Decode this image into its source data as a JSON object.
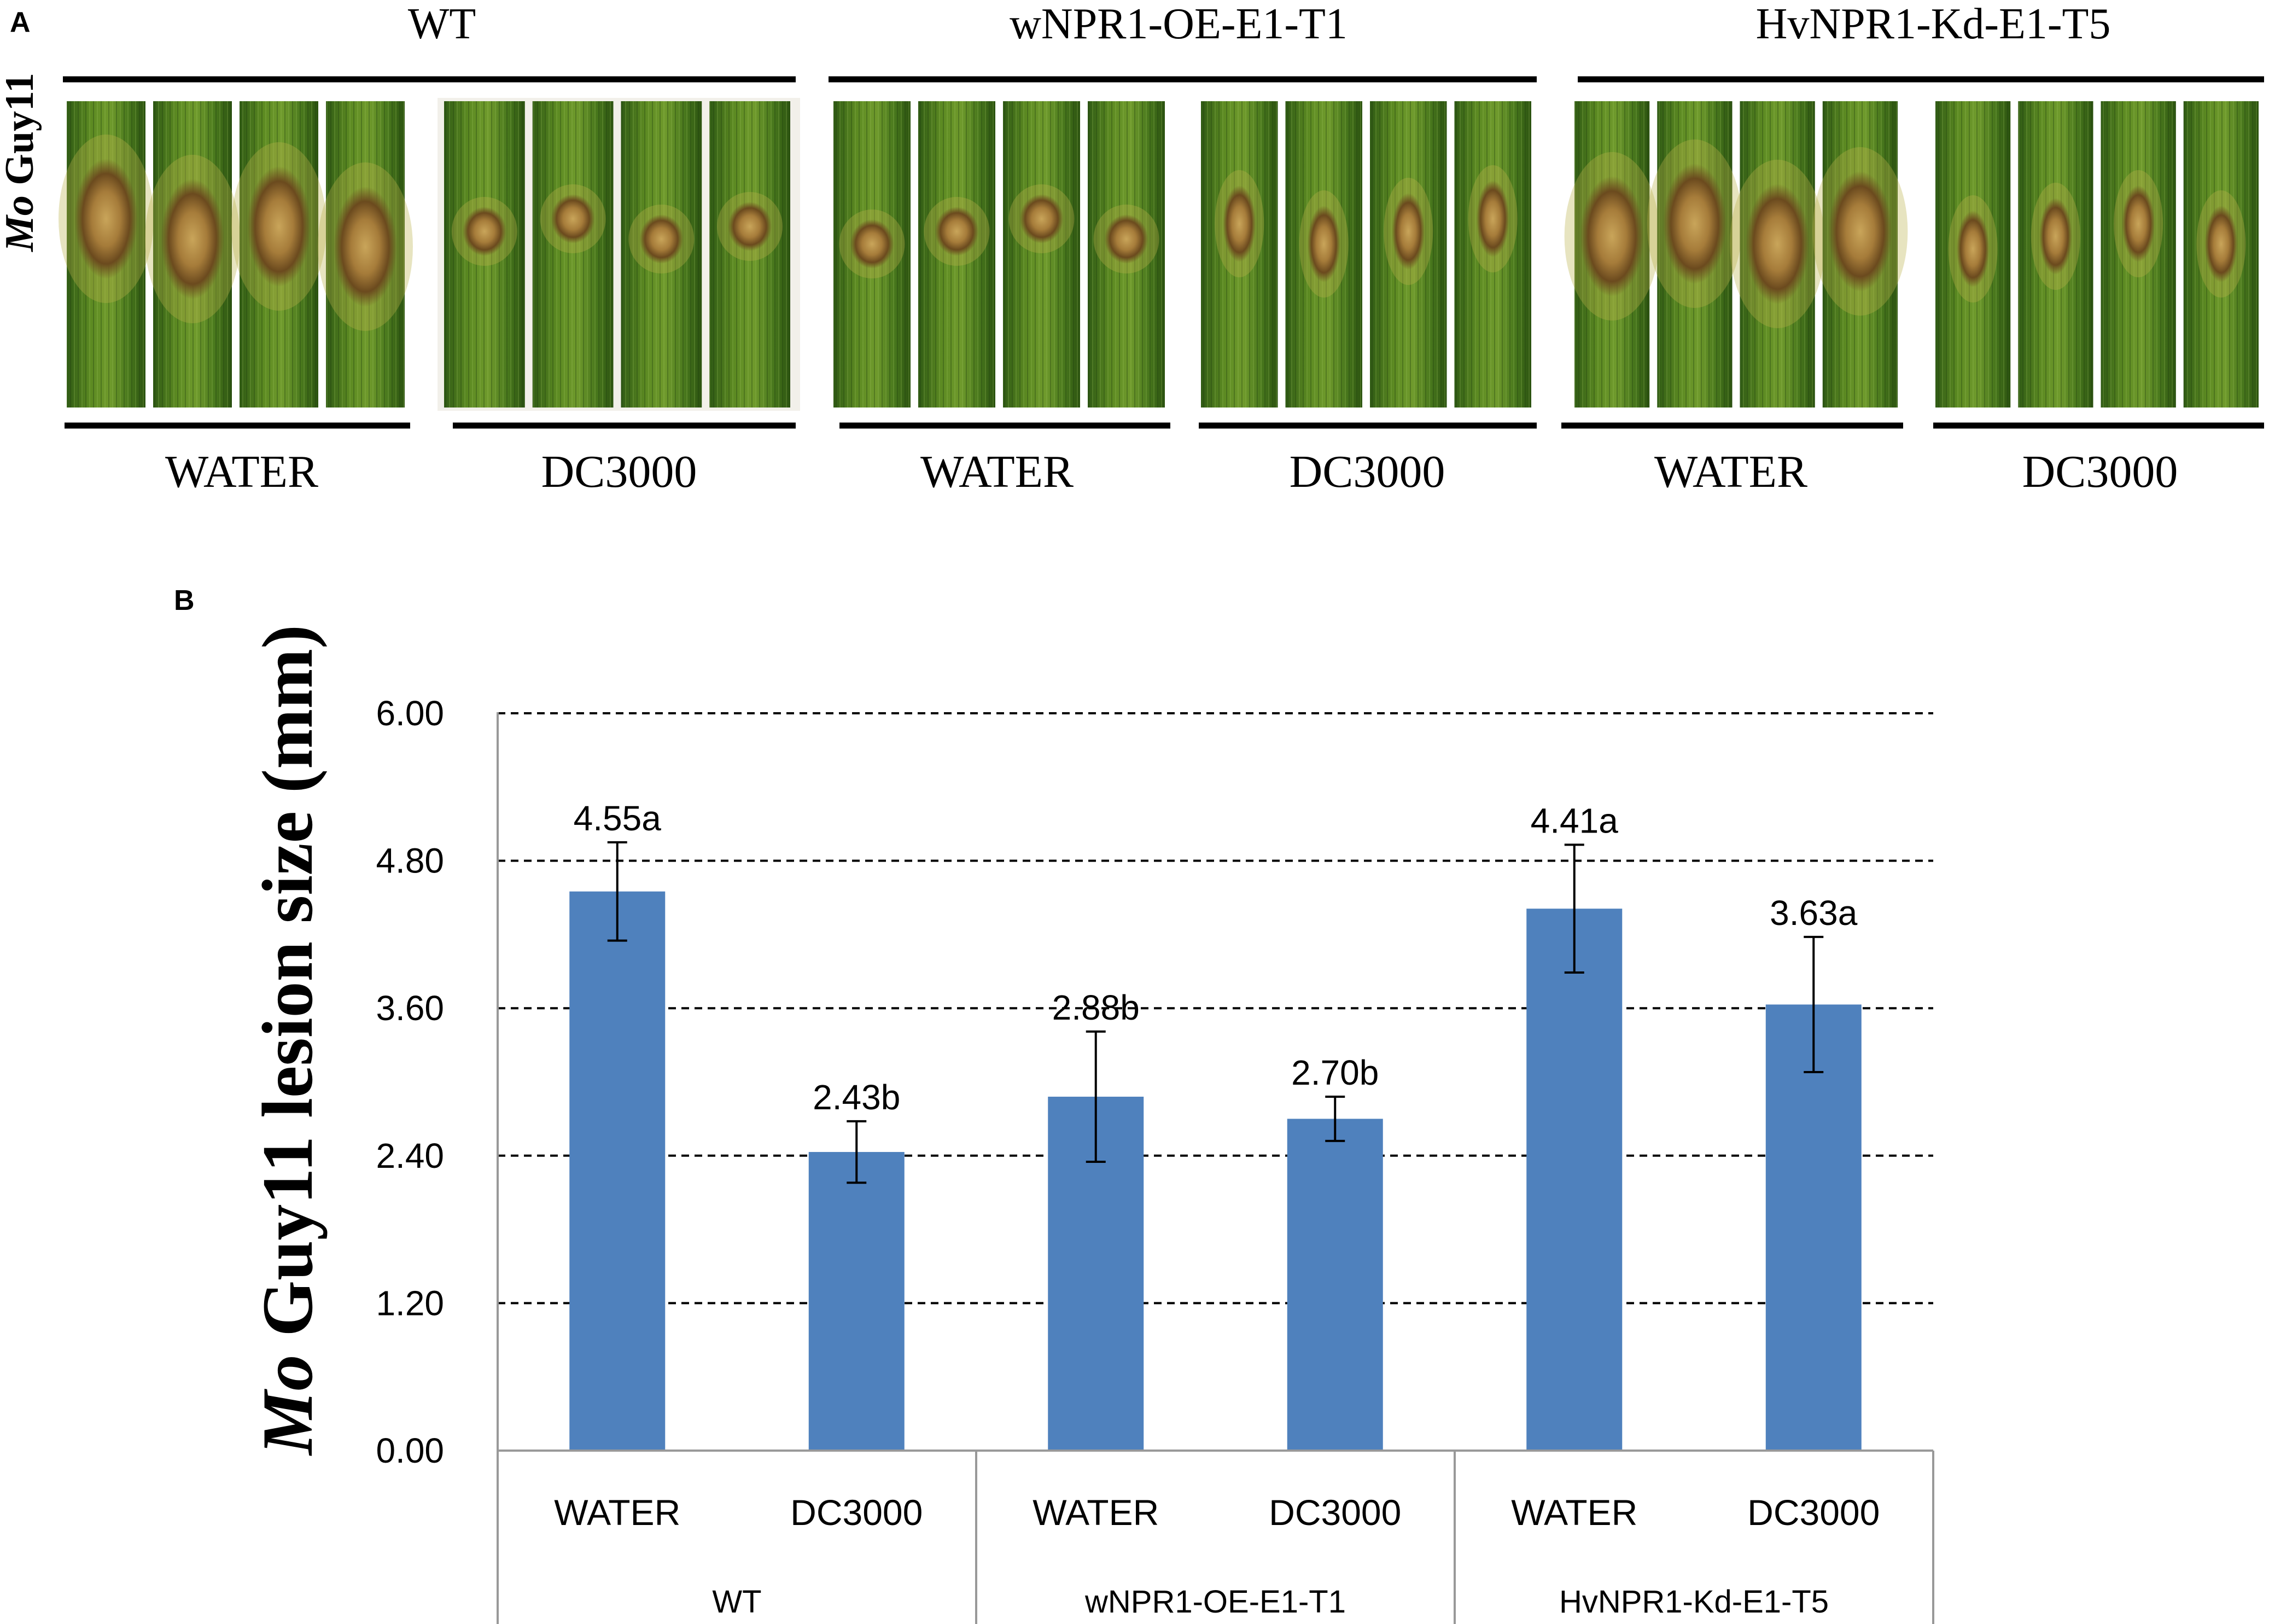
{
  "panel_a": {
    "label": "A",
    "row_label_italic": "Mo",
    "row_label_rest": " Guy11",
    "genotypes": [
      "WT",
      "wNPR1-OE-E1-T1",
      "HvNPR1-Kd-E1-T5"
    ],
    "treatments": [
      "WATER",
      "DC3000",
      "WATER",
      "DC3000",
      "WATER",
      "DC3000"
    ],
    "photo_description": "leaf segments with Mo Guy11 lesions"
  },
  "panel_b": {
    "label": "B"
  },
  "chart_data": {
    "type": "bar",
    "title": "",
    "ylabel_italic": "Mo",
    "ylabel_rest": " Guy11 lesion size (mm)",
    "ylim": [
      0,
      6
    ],
    "yticks": [
      "0.00",
      "1.20",
      "2.40",
      "3.60",
      "4.80",
      "6.00"
    ],
    "grid": "dashed",
    "categories": [
      "WATER",
      "DC3000",
      "WATER",
      "DC3000",
      "WATER",
      "DC3000"
    ],
    "groups": [
      {
        "name": "WT",
        "span": [
          0,
          1
        ]
      },
      {
        "name": "wNPR1-OE-E1-T1",
        "span": [
          2,
          3
        ]
      },
      {
        "name": "HvNPR1-Kd-E1-T5",
        "span": [
          4,
          5
        ]
      }
    ],
    "values": [
      4.55,
      2.43,
      2.88,
      2.7,
      4.41,
      3.63
    ],
    "errors": [
      0.4,
      0.25,
      0.53,
      0.18,
      0.52,
      0.55
    ],
    "data_labels": [
      "4.55a",
      "2.43b",
      "2.88b",
      "2.70b",
      "4.41a",
      "3.63a"
    ],
    "bar_color": "#4F81BD"
  }
}
